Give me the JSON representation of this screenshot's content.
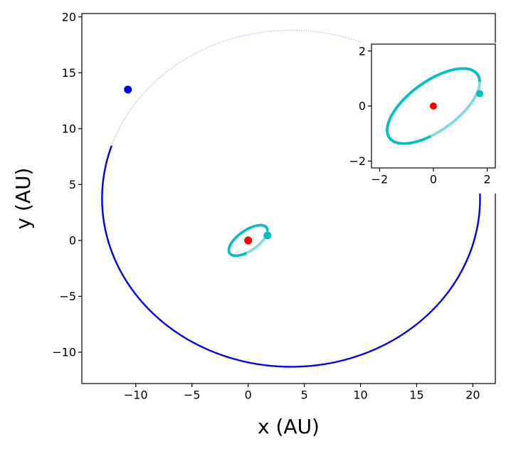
{
  "chart_data": {
    "type": "scatter",
    "xlabel": "x (AU)",
    "ylabel": "y (AU)",
    "xlim": [
      -14.8,
      22.0
    ],
    "ylim": [
      -12.8,
      20.3
    ],
    "xticks": [
      -10,
      -5,
      0,
      5,
      10,
      15,
      20
    ],
    "yticks": [
      -10,
      -5,
      0,
      5,
      10,
      15,
      20
    ],
    "grid": false,
    "series": [
      {
        "role": "outer orbit",
        "color": "#0000ee",
        "faded_color": "#c8c8ff",
        "orbit": {
          "x_center": 3.82,
          "y_center": 3.75,
          "semi_axis_x": 16.82,
          "semi_axis_y": 15.05,
          "rotation_deg": 0
        },
        "trail_solid_from_deg": 162,
        "trail_solid_to_deg": 397,
        "marker": {
          "x": -10.7,
          "y": 13.5
        }
      },
      {
        "role": "inner orbit",
        "color": "#00c0c0",
        "faded_color": "#7fdcdc",
        "orbit": {
          "x_center": 0.0,
          "y_center": 0.0,
          "semi_axis_x": 2.0,
          "semi_axis_y": 0.9,
          "rotation_deg": 35
        },
        "marker": {
          "x": 1.72,
          "y": 0.45
        }
      }
    ],
    "central_body": {
      "x": 0,
      "y": 0,
      "color": "#ff0000"
    },
    "inset": {
      "xlim": [
        -2.3,
        2.3
      ],
      "ylim": [
        -2.25,
        2.25
      ],
      "xticks": [
        -2,
        0,
        2
      ],
      "yticks": [
        -2,
        0,
        2
      ]
    }
  }
}
